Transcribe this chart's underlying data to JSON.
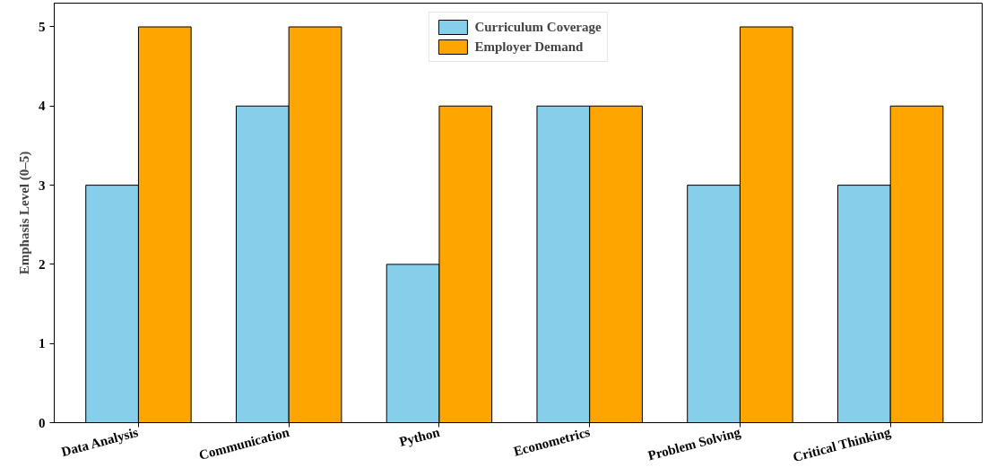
{
  "chart_data": {
    "type": "bar",
    "ylabel": "Emphasis Level (0–5)",
    "categories": [
      "Data Analysis",
      "Communication",
      "Python",
      "Econometrics",
      "Problem Solving",
      "Critical Thinking"
    ],
    "series": [
      {
        "name": "Curriculum Coverage",
        "color": "#87ceeb",
        "values": [
          3,
          4,
          2,
          4,
          3,
          3
        ]
      },
      {
        "name": "Employer Demand",
        "color": "#ffa500",
        "values": [
          5,
          5,
          4,
          4,
          5,
          4
        ]
      }
    ],
    "ylim": [
      0,
      5.3
    ],
    "yticks": [
      0,
      1,
      2,
      3,
      4,
      5
    ],
    "grid": false,
    "legend": "top"
  }
}
